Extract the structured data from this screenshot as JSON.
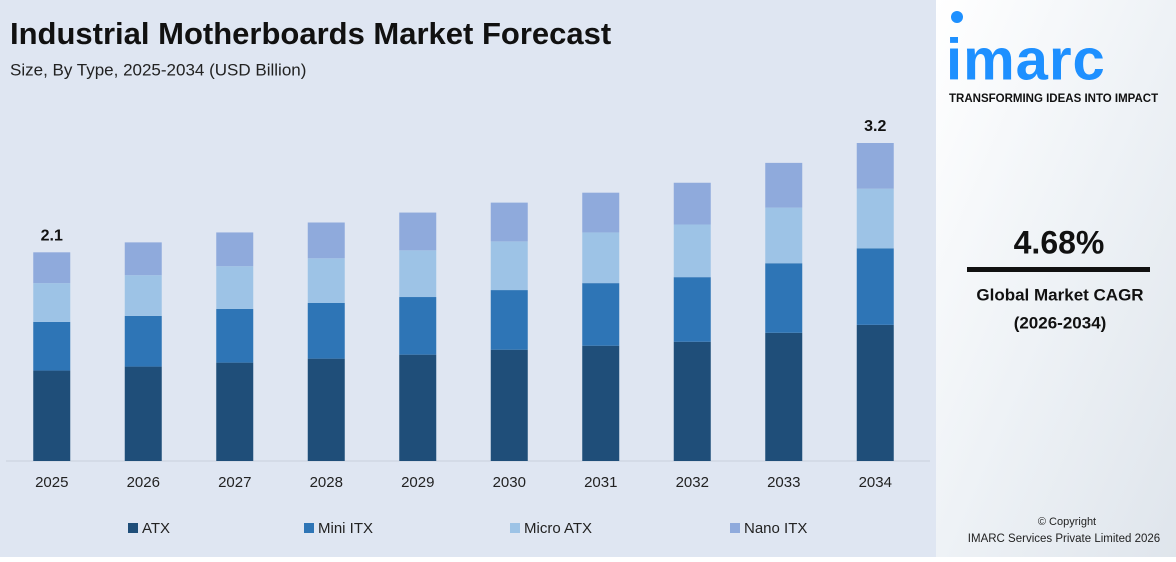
{
  "chart_data": {
    "type": "stacked_bar",
    "title": "Industrial Motherboards Market Forecast",
    "subtitle": "Size, By Type, 2025-2034 (USD Billion)",
    "categories": [
      "2025",
      "2026",
      "2027",
      "2028",
      "2029",
      "2030",
      "2031",
      "2032",
      "2033",
      "2034"
    ],
    "series": [
      {
        "name": "ATX",
        "color": "#1f4e79",
        "values": [
          0.91,
          0.95,
          0.99,
          1.03,
          1.07,
          1.12,
          1.16,
          1.2,
          1.29,
          1.37
        ]
      },
      {
        "name": "Mini ITX",
        "color": "#2e75b6",
        "values": [
          0.49,
          0.51,
          0.54,
          0.56,
          0.58,
          0.6,
          0.63,
          0.65,
          0.7,
          0.77
        ]
      },
      {
        "name": "Micro ATX",
        "color": "#9dc3e6",
        "values": [
          0.39,
          0.41,
          0.43,
          0.45,
          0.47,
          0.49,
          0.51,
          0.53,
          0.56,
          0.6
        ]
      },
      {
        "name": "Nano ITX",
        "color": "#8faadc",
        "values": [
          0.31,
          0.33,
          0.34,
          0.36,
          0.38,
          0.39,
          0.4,
          0.42,
          0.45,
          0.46
        ]
      }
    ],
    "totals": [
      2.1,
      null,
      null,
      null,
      null,
      null,
      null,
      null,
      null,
      3.2
    ],
    "ylim": [
      0,
      3.2
    ],
    "legend": "bottom"
  },
  "sidebar": {
    "logo": "imarc",
    "tagline": "TRANSFORMING IDEAS INTO IMPACT",
    "cagr": "4.68%",
    "cagr_label": "Global Market CAGR",
    "cagr_period": "(2026-2034)",
    "copyright": "© Copyright",
    "company": "IMARC Services Private Limited 2026"
  }
}
